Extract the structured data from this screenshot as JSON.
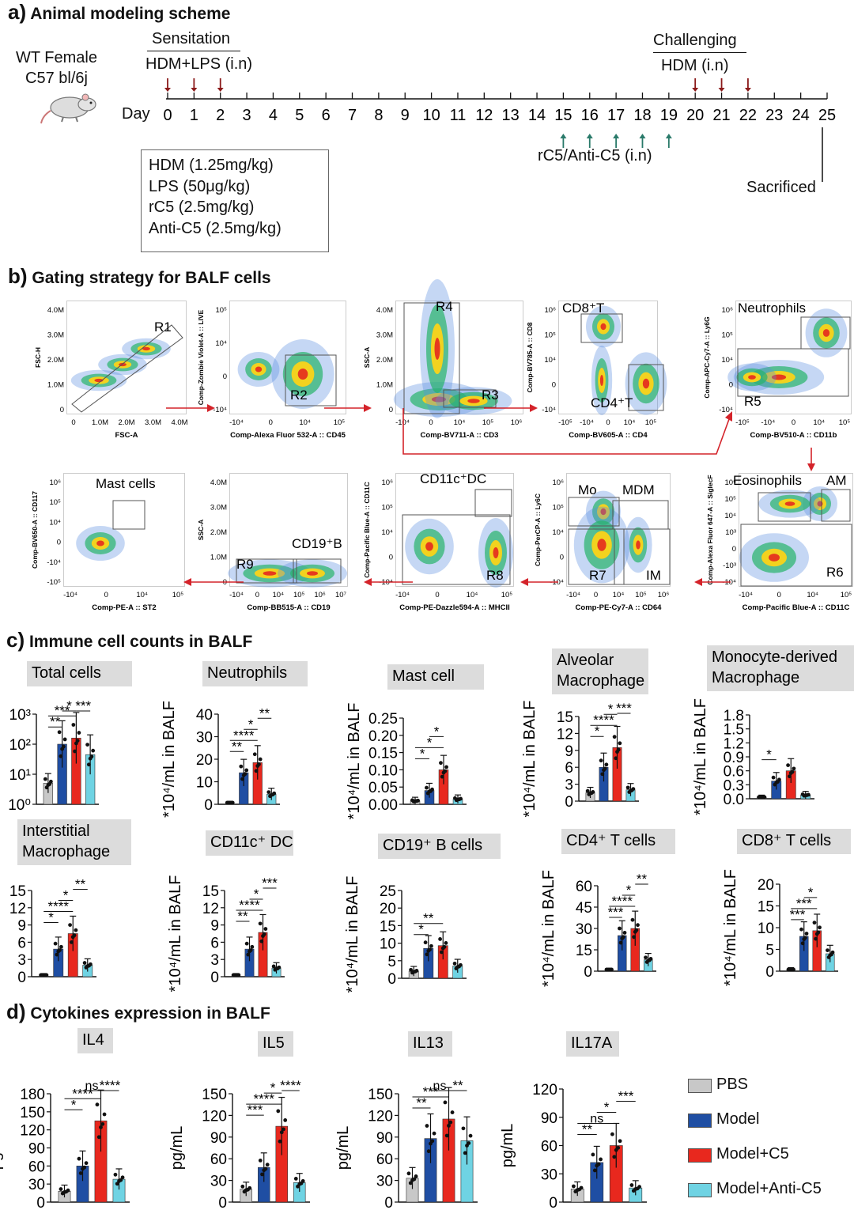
{
  "figure": {
    "a": {
      "letter": "a)",
      "title": "Animal modeling scheme",
      "mouse_line1": "WT Female",
      "mouse_line2": "C57 bl/6j",
      "sensitation": "Sensitation",
      "sens_agent": "HDM+LPS (i.n)",
      "challenging": "Challenging",
      "chal_agent": "HDM (i.n)",
      "day_label": "Day",
      "days": [
        "0",
        "1",
        "2",
        "3",
        "4",
        "5",
        "6",
        "7",
        "8",
        "9",
        "10",
        "11",
        "12",
        "13",
        "14",
        "15",
        "16",
        "17",
        "18",
        "19",
        "20",
        "21",
        "22",
        "23",
        "24",
        "25"
      ],
      "treatment": "rC5/Anti-C5 (i.n)",
      "sacrificed": "Sacrificed",
      "doses": [
        "HDM (1.25mg/kg)",
        "LPS (50μg/kg)",
        "rC5 (2.5mg/kg)",
        "Anti-C5 (2.5mg/kg)"
      ]
    },
    "b": {
      "letter": "b)",
      "title": "Gating strategy for BALF cells",
      "panels": [
        {
          "xlab": "FSC-A",
          "ylab": "FSC-H",
          "gates": [
            "R1"
          ],
          "xt": [
            "0",
            "1.0M",
            "2.0M",
            "3.0M",
            "4.0M"
          ],
          "yt": [
            "4.0M",
            "3.0M",
            "2.0M",
            "1.0M",
            "0"
          ]
        },
        {
          "xlab": "Comp-Alexa Fluor 532-A :: CD45",
          "ylab": "Comp-Zombie Violet-A :: LIVE",
          "gates": [
            "R2"
          ],
          "xt": [
            "-10⁴",
            "0",
            "10⁴",
            "10⁵"
          ],
          "yt": [
            "10⁵",
            "10⁴",
            "0",
            "-10⁴"
          ]
        },
        {
          "xlab": "Comp-BV711-A :: CD3",
          "ylab": "SSC-A",
          "gates": [
            "R4",
            "R3"
          ],
          "xt": [
            "-10⁴",
            "0",
            "10⁴",
            "10⁵",
            "10⁶"
          ],
          "yt": [
            "4.0M",
            "3.0M",
            "2.0M",
            "1.0M",
            "0"
          ]
        },
        {
          "xlab": "Comp-BV605-A :: CD4",
          "ylab": "Comp-BV785-A :: CD8",
          "gates": [
            "CD8⁺T",
            "CD4⁺T"
          ],
          "xt": [
            "-10⁵",
            "-10⁴",
            "0",
            "10⁴",
            "10⁵"
          ],
          "yt": [
            "10⁶",
            "10⁵",
            "10⁴",
            "0",
            "-10⁴"
          ]
        },
        {
          "xlab": "Comp-BV510-A :: CD11b",
          "ylab": "Comp-APC-Cy7-A :: Ly6G",
          "gates": [
            "Neutrophils",
            "R5"
          ],
          "xt": [
            "-10⁵",
            "-10⁴",
            "0",
            "10⁴",
            "10⁵"
          ],
          "yt": [
            "10⁶",
            "10⁵",
            "10⁴",
            "0",
            "-10⁴"
          ]
        },
        {
          "xlab": "Comp-PE-A :: ST2",
          "ylab": "Comp-BV650-A :: CD117",
          "gates": [
            "Mast cells"
          ],
          "xt": [
            "-10⁴",
            "0",
            "10⁴",
            "10⁵"
          ],
          "yt": [
            "10⁶",
            "10⁵",
            "10⁴",
            "0",
            "-10⁴",
            "-10⁵"
          ]
        },
        {
          "xlab": "Comp-BB515-A :: CD19",
          "ylab": "SSC-A",
          "gates": [
            "R9",
            "CD19⁺B"
          ],
          "xt": [
            "-10⁴",
            "0",
            "10⁴",
            "10⁵",
            "10⁶",
            "10⁷"
          ],
          "yt": [
            "4.0M",
            "3.0M",
            "2.0M",
            "1.0M",
            "0"
          ]
        },
        {
          "xlab": "Comp-PE-Dazzle594-A :: MHCII",
          "ylab": "Comp-Pacific Blue-A :: CD11C",
          "gates": [
            "CD11c⁺DC",
            "R8"
          ],
          "xt": [
            "-10⁴",
            "0",
            "10⁴",
            "10⁵"
          ],
          "yt": [
            "10⁶",
            "10⁵",
            "10⁴",
            "0",
            "-10⁴"
          ]
        },
        {
          "xlab": "Comp-PE-Cy7-A :: CD64",
          "ylab": "Comp-PerCP-A :: Ly6C",
          "gates": [
            "Mo",
            "MDM",
            "R7",
            "IM"
          ],
          "xt": [
            "-10⁴",
            "0",
            "10⁴",
            "10⁵",
            "10⁶"
          ],
          "yt": [
            "10⁶",
            "10⁵",
            "10⁴",
            "0",
            "-10⁴"
          ]
        },
        {
          "xlab": "Comp-Pacific Blue-A :: CD11C",
          "ylab": "Comp-Alexa Fluor 647-A :: SiglecF",
          "gates": [
            "Eosinophils",
            "AM",
            "R6"
          ],
          "xt": [
            "-10⁴",
            "0",
            "10⁴",
            "10⁵"
          ],
          "yt": [
            "10⁶",
            "10⁵",
            "10⁴",
            "10³",
            "0",
            "-10³",
            "-10⁴"
          ]
        }
      ]
    },
    "c": {
      "letter": "c)",
      "title": "Immune cell counts in BALF",
      "ylabel": "*10⁴/mL in BALF"
    },
    "d": {
      "letter": "d)",
      "title": "Cytokines expression in BALF",
      "ylabel": "pg/mL"
    },
    "legend": [
      {
        "label": "PBS",
        "color": "#c8c8c8"
      },
      {
        "label": "Model",
        "color": "#1f4ea3"
      },
      {
        "label": "Model+C5",
        "color": "#e8281e"
      },
      {
        "label": "Model+Anti-C5",
        "color": "#6fd3e3"
      }
    ]
  },
  "chart_data": [
    {
      "type": "bar",
      "title": "Total cells",
      "scale": "log",
      "ylim": [
        1,
        1000
      ],
      "yticks": [
        "10⁰",
        "10¹",
        "10²",
        "10³"
      ],
      "categories": [
        "PBS",
        "Model",
        "Model+C5",
        "Model+Anti-C5"
      ],
      "values": [
        5,
        100,
        160,
        45
      ],
      "sig": [
        "**",
        "***",
        "*",
        "***"
      ]
    },
    {
      "type": "bar",
      "title": "Neutrophils",
      "ylim": [
        0,
        40
      ],
      "yticks": [
        "0",
        "10",
        "20",
        "30",
        "40"
      ],
      "categories": [
        "PBS",
        "Model",
        "Model+C5",
        "Model+Anti-C5"
      ],
      "values": [
        0.2,
        14,
        18.5,
        4.5
      ],
      "sig": [
        "**",
        "****",
        "*",
        "**"
      ]
    },
    {
      "type": "bar",
      "title": "Mast  cell",
      "ylim": [
        0,
        0.25
      ],
      "yticks": [
        "0.00",
        "0.05",
        "0.10",
        "0.15",
        "0.20",
        "0.25"
      ],
      "categories": [
        "PBS",
        "Model",
        "Model+C5",
        "Model+Anti-C5"
      ],
      "values": [
        0.01,
        0.04,
        0.1,
        0.015
      ],
      "sig": [
        "*",
        "*",
        "*"
      ]
    },
    {
      "type": "bar",
      "title": "Alveolar Macrophage",
      "title_lines": [
        "Alveolar",
        "Macrophage"
      ],
      "ylim": [
        0,
        15
      ],
      "yticks": [
        "0",
        "3",
        "6",
        "9",
        "12",
        "15"
      ],
      "categories": [
        "PBS",
        "Model",
        "Model+C5",
        "Model+Anti-C5"
      ],
      "values": [
        1.5,
        6,
        9.5,
        2
      ],
      "sig": [
        "*",
        "****",
        "*",
        "***"
      ]
    },
    {
      "type": "bar",
      "title": "Monocyte-derived Macrophage",
      "title_lines": [
        "Monocyte-derived",
        "Macrophage"
      ],
      "ylim": [
        0,
        1.8
      ],
      "yticks": [
        "0.0",
        "0.3",
        "0.6",
        "0.9",
        "1.2",
        "1.5",
        "1.8"
      ],
      "categories": [
        "PBS",
        "Model",
        "Model+C5",
        "Model+Anti-C5"
      ],
      "values": [
        0.02,
        0.38,
        0.6,
        0.08
      ],
      "sig": [
        "*"
      ]
    },
    {
      "type": "bar",
      "title": "Interstitial Macrophage",
      "title_lines": [
        "Interstitial",
        "Macrophage"
      ],
      "ylim": [
        0,
        15
      ],
      "yticks": [
        "0",
        "3",
        "6",
        "9",
        "12",
        "15"
      ],
      "categories": [
        "PBS",
        "Model",
        "Model+C5",
        "Model+Anti-C5"
      ],
      "values": [
        0.1,
        4.8,
        7.5,
        2
      ],
      "sig": [
        "*",
        "****",
        "*",
        "**"
      ]
    },
    {
      "type": "bar",
      "title": "CD11c⁺ DC",
      "ylim": [
        0,
        15
      ],
      "yticks": [
        "0",
        "3",
        "6",
        "9",
        "12",
        "15"
      ],
      "categories": [
        "PBS",
        "Model",
        "Model+C5",
        "Model+Anti-C5"
      ],
      "values": [
        0.1,
        4.8,
        7.7,
        1.5
      ],
      "sig": [
        "**",
        "****",
        "*",
        "***"
      ]
    },
    {
      "type": "bar",
      "title": "CD19⁺ B cells",
      "ylim": [
        0,
        25
      ],
      "yticks": [
        "0",
        "5",
        "10",
        "15",
        "20",
        "25"
      ],
      "categories": [
        "PBS",
        "Model",
        "Model+C5",
        "Model+Anti-C5"
      ],
      "values": [
        2,
        8.5,
        9.3,
        3.5
      ],
      "sig": [
        "*",
        "**"
      ]
    },
    {
      "type": "bar",
      "title": "CD4⁺ T cells",
      "ylim": [
        0,
        60
      ],
      "yticks": [
        "0",
        "15",
        "30",
        "45",
        "60"
      ],
      "categories": [
        "PBS",
        "Model",
        "Model+C5",
        "Model+Anti-C5"
      ],
      "values": [
        0.3,
        25,
        30,
        8
      ],
      "sig": [
        "***",
        "****",
        "*",
        "**"
      ]
    },
    {
      "type": "bar",
      "title": "CD8⁺ T cells",
      "ylim": [
        0,
        20
      ],
      "yticks": [
        "0",
        "5",
        "10",
        "15",
        "20"
      ],
      "categories": [
        "PBS",
        "Model",
        "Model+C5",
        "Model+Anti-C5"
      ],
      "values": [
        0.2,
        8,
        9.3,
        4
      ],
      "sig": [
        "***",
        "***",
        "*"
      ]
    },
    {
      "type": "bar",
      "title": "IL4",
      "ylim": [
        0,
        180
      ],
      "yticks": [
        "0",
        "30",
        "60",
        "90",
        "120",
        "150",
        "180"
      ],
      "categories": [
        "PBS",
        "Model",
        "Model+C5",
        "Model+Anti-C5"
      ],
      "values": [
        18,
        60,
        135,
        38
      ],
      "sig": [
        "*",
        "****",
        "ns",
        "****"
      ]
    },
    {
      "type": "bar",
      "title": "IL5",
      "ylim": [
        0,
        150
      ],
      "yticks": [
        "0",
        "30",
        "60",
        "90",
        "120",
        "150"
      ],
      "categories": [
        "PBS",
        "Model",
        "Model+C5",
        "Model+Anti-C5"
      ],
      "values": [
        18,
        48,
        105,
        27
      ],
      "sig": [
        "***",
        "****",
        "*",
        "****"
      ]
    },
    {
      "type": "bar",
      "title": "IL13",
      "ylim": [
        0,
        150
      ],
      "yticks": [
        "0",
        "30",
        "60",
        "90",
        "120",
        "150"
      ],
      "categories": [
        "PBS",
        "Model",
        "Model+C5",
        "Model+Anti-C5"
      ],
      "values": [
        33,
        88,
        115,
        85
      ],
      "sig": [
        "**",
        "***",
        "ns",
        "**"
      ]
    },
    {
      "type": "bar",
      "title": "IL17A",
      "ylim": [
        0,
        120
      ],
      "yticks": [
        "0",
        "30",
        "60",
        "90",
        "120"
      ],
      "categories": [
        "PBS",
        "Model",
        "Model+C5",
        "Model+Anti-C5"
      ],
      "values": [
        14,
        42,
        60,
        15
      ],
      "sig": [
        "**",
        "ns",
        "*",
        "***"
      ]
    }
  ]
}
